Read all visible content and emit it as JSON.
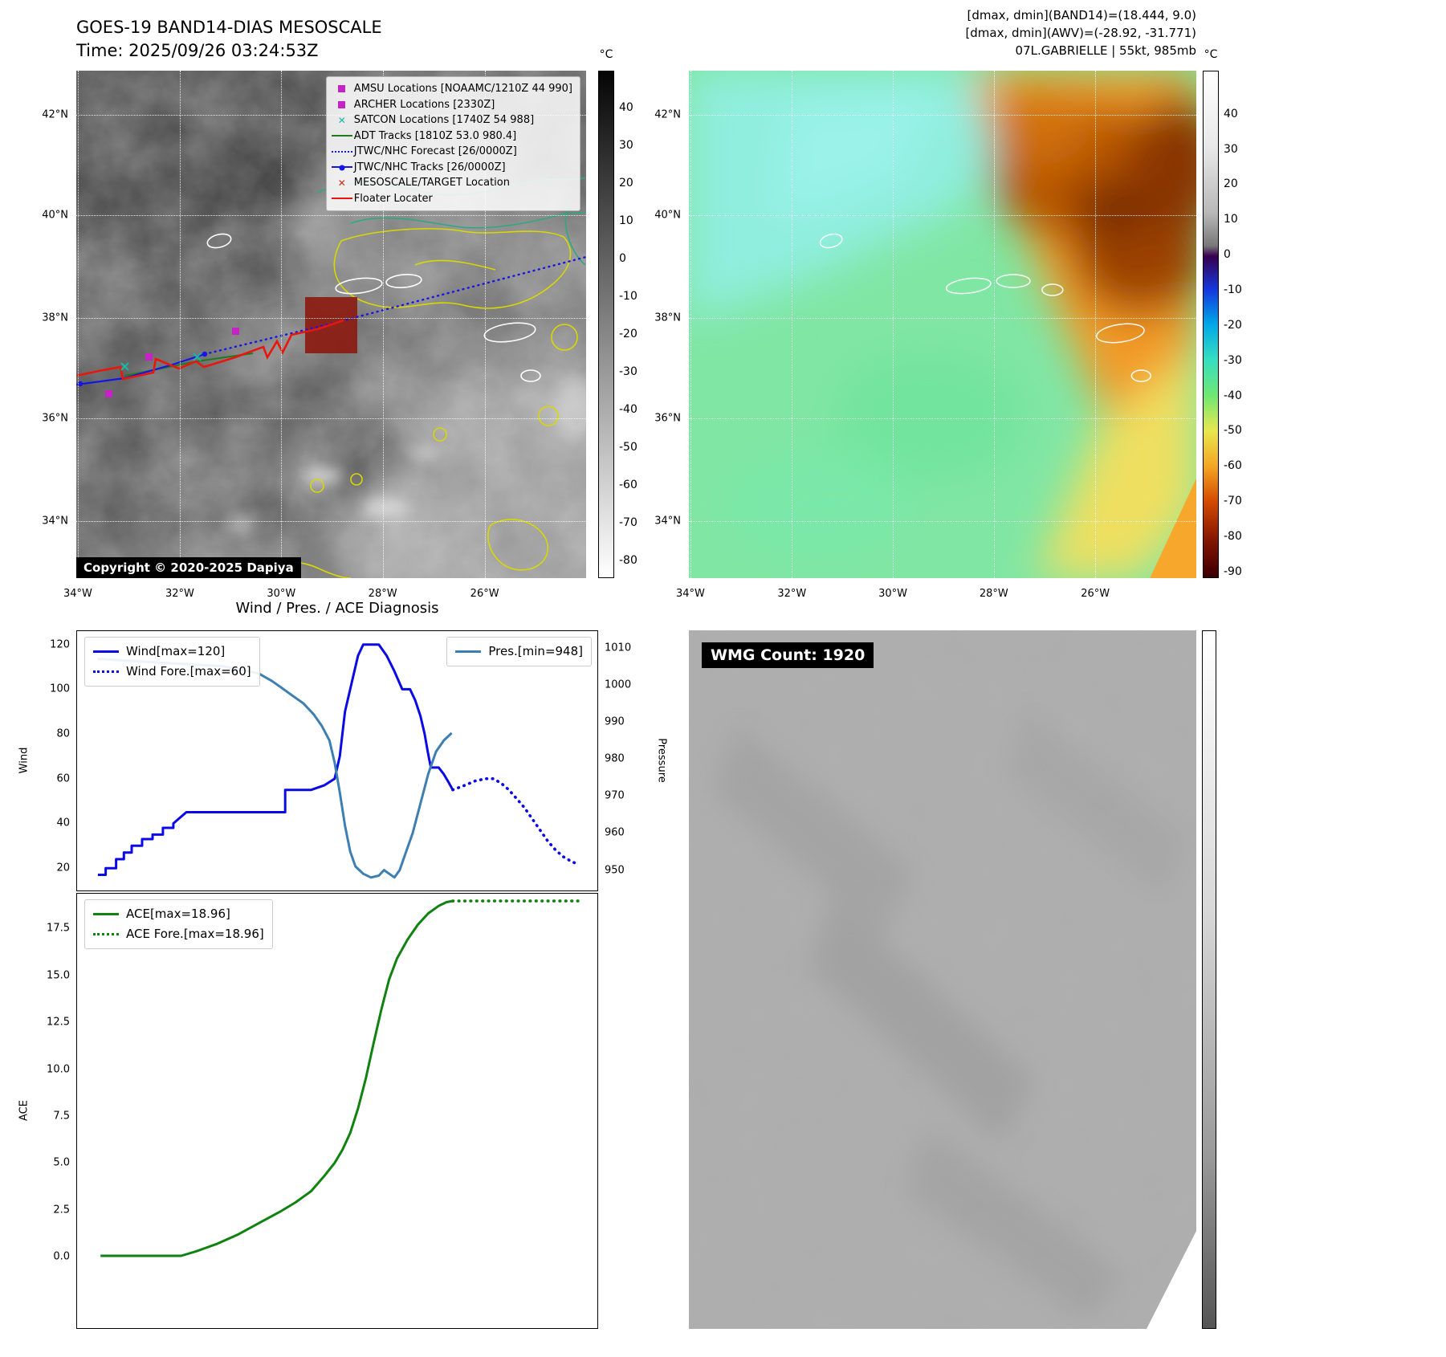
{
  "ir_panel": {
    "title": "GOES-19 BAND14-DIAS MESOSCALE",
    "time": "Time: 2025/09/26 03:24:53Z",
    "copyright": "Copyright © 2020-2025 Dapiya",
    "lat_ticks": [
      "42°N",
      "40°N",
      "38°N",
      "36°N",
      "34°N"
    ],
    "lon_ticks": [
      "34°W",
      "32°W",
      "30°W",
      "28°W",
      "26°W"
    ],
    "lat_fracs": [
      0.087,
      0.285,
      0.487,
      0.685,
      0.888
    ],
    "lon_fracs": [
      0.003,
      0.203,
      0.402,
      0.601,
      0.801
    ],
    "legend": [
      {
        "label": "AMSU Locations [NOAAMC/1210Z 44 990]",
        "marker": "square",
        "color": "#c623c6"
      },
      {
        "label": "ARCHER Locations [2330Z]",
        "marker": "square",
        "color": "#c623c6"
      },
      {
        "label": "SATCON Locations [1740Z 54 988]",
        "marker": "x",
        "color": "#17b8a6"
      },
      {
        "label": "ADT Tracks [1810Z 53.0 980.4]",
        "marker": "line",
        "color": "#1f7a1f"
      },
      {
        "label": "JTWC/NHC Forecast [26/0000Z]",
        "marker": "dotted",
        "color": "#1515e6"
      },
      {
        "label": "JTWC/NHC Tracks [26/0000Z]",
        "marker": "line-dot",
        "color": "#1515e6"
      },
      {
        "label": "MESOSCALE/TARGET Location",
        "marker": "x",
        "color": "#d62718"
      },
      {
        "label": "Floater Locater",
        "marker": "line",
        "color": "#e8170e"
      }
    ],
    "colorbar": {
      "unit": "°C",
      "vmax": 49.5,
      "vmin": -84.5,
      "ticks": [
        40,
        30,
        20,
        10,
        0,
        -10,
        -20,
        -30,
        -40,
        -50,
        -60,
        -70,
        -80
      ]
    }
  },
  "awv_panel": {
    "stats_band14": "[dmax, dmin](BAND14)=(18.444, 9.0)",
    "stats_awv": "[dmax, dmin](AWV)=(-28.92, -31.771)",
    "storm_info": "07L.GABRIELLE | 55kt, 985mb",
    "lat_ticks": [
      "42°N",
      "40°N",
      "38°N",
      "36°N",
      "34°N"
    ],
    "lon_ticks": [
      "34°W",
      "32°W",
      "30°W",
      "28°W",
      "26°W"
    ],
    "lat_fracs": [
      0.087,
      0.285,
      0.487,
      0.685,
      0.888
    ],
    "lon_fracs": [
      0.003,
      0.203,
      0.402,
      0.601,
      0.801
    ],
    "colorbar": {
      "unit": "°C",
      "vmax": 52,
      "vmin": -91.6,
      "ticks": [
        40,
        30,
        20,
        10,
        0,
        -10,
        -20,
        -30,
        -40,
        -50,
        -60,
        -70,
        -80,
        -90
      ]
    }
  },
  "wmg_panel": {
    "count_label": "WMG Count: 1920"
  },
  "chart_data": [
    {
      "type": "line",
      "title": "Wind / Pres. / ACE Diagnosis",
      "xlabel": "",
      "xticks": [],
      "ylabel": "Wind",
      "y2label": "Pressure",
      "ylim": [
        10,
        126
      ],
      "y2lim": [
        944.5,
        1014.5
      ],
      "grid": false,
      "legend_position": "upper-left and upper-right",
      "yticks": [
        [
          20,
          "20"
        ],
        [
          40,
          "40"
        ],
        [
          60,
          "60"
        ],
        [
          80,
          "80"
        ],
        [
          100,
          "100"
        ],
        [
          120,
          "120"
        ]
      ],
      "y2ticks": [
        [
          950,
          "950"
        ],
        [
          960,
          "960"
        ],
        [
          970,
          "970"
        ],
        [
          980,
          "980"
        ],
        [
          990,
          "990"
        ],
        [
          1000,
          "1000"
        ],
        [
          1010,
          "1010"
        ]
      ],
      "series": [
        {
          "name": "Wind[max=120]",
          "color": "#0a0ae6",
          "dash": "solid",
          "axis": "left",
          "legend": "left",
          "points": [
            [
              0.04,
              17
            ],
            [
              0.055,
              17
            ],
            [
              0.055,
              20
            ],
            [
              0.075,
              20
            ],
            [
              0.075,
              24
            ],
            [
              0.09,
              24
            ],
            [
              0.09,
              27
            ],
            [
              0.105,
              27
            ],
            [
              0.105,
              30
            ],
            [
              0.125,
              30
            ],
            [
              0.125,
              33
            ],
            [
              0.145,
              33
            ],
            [
              0.145,
              35
            ],
            [
              0.165,
              35
            ],
            [
              0.165,
              38
            ],
            [
              0.185,
              38
            ],
            [
              0.185,
              40
            ],
            [
              0.21,
              45
            ],
            [
              0.4,
              45
            ],
            [
              0.4,
              55
            ],
            [
              0.45,
              55
            ],
            [
              0.475,
              57
            ],
            [
              0.495,
              60
            ],
            [
              0.505,
              70
            ],
            [
              0.515,
              90
            ],
            [
              0.53,
              105
            ],
            [
              0.54,
              115
            ],
            [
              0.55,
              120
            ],
            [
              0.58,
              120
            ],
            [
              0.595,
              115
            ],
            [
              0.61,
              108
            ],
            [
              0.625,
              100
            ],
            [
              0.64,
              100
            ],
            [
              0.65,
              95
            ],
            [
              0.66,
              88
            ],
            [
              0.668,
              80
            ],
            [
              0.674,
              72
            ],
            [
              0.68,
              65
            ],
            [
              0.695,
              65
            ],
            [
              0.705,
              62
            ],
            [
              0.715,
              58
            ],
            [
              0.722,
              55
            ]
          ]
        },
        {
          "name": "Wind Fore.[max=60]",
          "color": "#0a0ae6",
          "dash": "dotted",
          "axis": "left",
          "legend": "left",
          "points": [
            [
              0.722,
              55
            ],
            [
              0.745,
              57
            ],
            [
              0.765,
              59
            ],
            [
              0.785,
              60
            ],
            [
              0.8,
              60
            ],
            [
              0.815,
              58
            ],
            [
              0.83,
              55
            ],
            [
              0.845,
              51
            ],
            [
              0.86,
              47
            ],
            [
              0.875,
              42
            ],
            [
              0.89,
              37
            ],
            [
              0.905,
              32
            ],
            [
              0.92,
              28
            ],
            [
              0.935,
              25
            ],
            [
              0.95,
              23
            ],
            [
              0.96,
              22
            ]
          ]
        },
        {
          "name": "Pres.[min=948]",
          "color": "#3d7fb2",
          "dash": "solid",
          "axis": "right",
          "legend": "right",
          "points": [
            [
              0.04,
              1007
            ],
            [
              0.1,
              1006.5
            ],
            [
              0.16,
              1006
            ],
            [
              0.22,
              1005.5
            ],
            [
              0.28,
              1005
            ],
            [
              0.32,
              1004
            ],
            [
              0.35,
              1003
            ],
            [
              0.375,
              1001
            ],
            [
              0.395,
              999
            ],
            [
              0.415,
              997
            ],
            [
              0.435,
              995
            ],
            [
              0.455,
              992
            ],
            [
              0.47,
              989
            ],
            [
              0.485,
              985
            ],
            [
              0.495,
              979
            ],
            [
              0.505,
              971
            ],
            [
              0.515,
              962
            ],
            [
              0.525,
              955
            ],
            [
              0.535,
              951
            ],
            [
              0.55,
              949
            ],
            [
              0.565,
              948
            ],
            [
              0.58,
              948.5
            ],
            [
              0.59,
              950
            ],
            [
              0.6,
              949
            ],
            [
              0.61,
              948
            ],
            [
              0.62,
              950
            ],
            [
              0.63,
              954
            ],
            [
              0.645,
              960
            ],
            [
              0.66,
              968
            ],
            [
              0.675,
              976
            ],
            [
              0.69,
              982
            ],
            [
              0.705,
              985
            ],
            [
              0.72,
              987
            ]
          ]
        }
      ]
    },
    {
      "type": "line",
      "title": "",
      "xlabel": "",
      "xticks": [],
      "ylabel": "ACE",
      "ylim": [
        -3.8,
        19.35
      ],
      "grid": false,
      "legend_position": "upper-left",
      "yticks": [
        [
          0,
          "0.0"
        ],
        [
          2.5,
          "2.5"
        ],
        [
          5,
          "5.0"
        ],
        [
          7.5,
          "7.5"
        ],
        [
          10,
          "10.0"
        ],
        [
          12.5,
          "12.5"
        ],
        [
          15,
          "15.0"
        ],
        [
          17.5,
          "17.5"
        ]
      ],
      "series": [
        {
          "name": "ACE[max=18.96]",
          "color": "#0f820f",
          "dash": "solid",
          "axis": "left",
          "legend": "left",
          "points": [
            [
              0.045,
              0.05
            ],
            [
              0.12,
              0.05
            ],
            [
              0.2,
              0.05
            ],
            [
              0.23,
              0.3
            ],
            [
              0.27,
              0.7
            ],
            [
              0.31,
              1.2
            ],
            [
              0.35,
              1.8
            ],
            [
              0.39,
              2.4
            ],
            [
              0.42,
              2.9
            ],
            [
              0.45,
              3.5
            ],
            [
              0.475,
              4.3
            ],
            [
              0.495,
              5.0
            ],
            [
              0.51,
              5.7
            ],
            [
              0.525,
              6.6
            ],
            [
              0.54,
              7.9
            ],
            [
              0.555,
              9.5
            ],
            [
              0.57,
              11.4
            ],
            [
              0.585,
              13.2
            ],
            [
              0.6,
              14.8
            ],
            [
              0.615,
              15.9
            ],
            [
              0.635,
              16.9
            ],
            [
              0.655,
              17.7
            ],
            [
              0.675,
              18.3
            ],
            [
              0.695,
              18.7
            ],
            [
              0.71,
              18.9
            ],
            [
              0.722,
              18.96
            ]
          ]
        },
        {
          "name": "ACE Fore.[max=18.96]",
          "color": "#0f820f",
          "dash": "dotted",
          "axis": "left",
          "legend": "left",
          "points": [
            [
              0.722,
              18.96
            ],
            [
              0.97,
              18.96
            ]
          ]
        }
      ]
    }
  ]
}
